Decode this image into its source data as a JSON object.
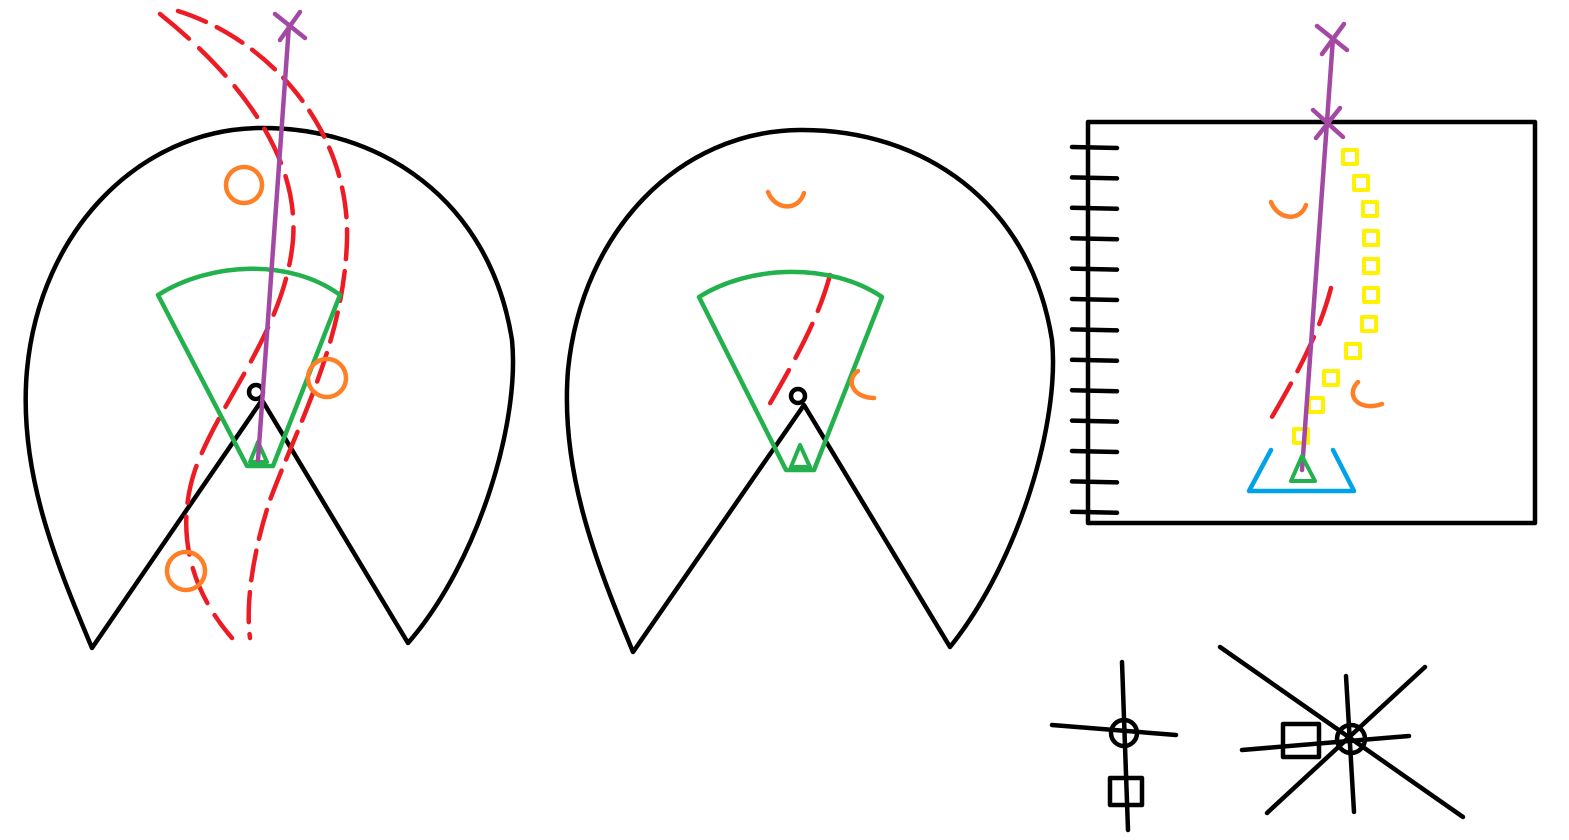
{
  "colors": {
    "black": "#000000",
    "red": "#ed1c24",
    "green": "#22b14c",
    "purple": "#a349a4",
    "orange": "#ff7f27",
    "yellow": "#fff200",
    "blue": "#00a2e8"
  },
  "panels": [
    {
      "name": "left-sensor-view"
    },
    {
      "name": "middle-sensor-view"
    },
    {
      "name": "right-map-view"
    }
  ],
  "legend": [
    {
      "name": "circle-square-cross-symbol"
    },
    {
      "name": "star-circle-square-symbol"
    }
  ]
}
